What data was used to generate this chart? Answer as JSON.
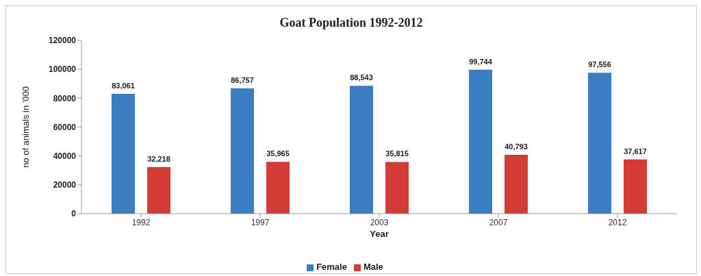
{
  "chart_data": {
    "type": "bar",
    "title": "Goat Population 1992-2012",
    "xlabel": "Year",
    "ylabel": "no of animals in '000",
    "categories": [
      "1992",
      "1997",
      "2003",
      "2007",
      "2012"
    ],
    "series": [
      {
        "name": "Female",
        "color": "#3b7dc4",
        "values": [
          83061,
          86757,
          88543,
          99744,
          97556
        ],
        "value_labels": [
          "83,061",
          "86,757",
          "88,543",
          "99,744",
          "97,556"
        ]
      },
      {
        "name": "Male",
        "color": "#d33b36",
        "values": [
          32218,
          35965,
          35815,
          40793,
          37617
        ],
        "value_labels": [
          "32,218",
          "35,965",
          "35,815",
          "40,793",
          "37,617"
        ]
      }
    ],
    "ylim": [
      0,
      120000
    ],
    "yticks": [
      0,
      20000,
      40000,
      60000,
      80000,
      100000,
      120000
    ],
    "grid": false,
    "legend": "bottom"
  }
}
